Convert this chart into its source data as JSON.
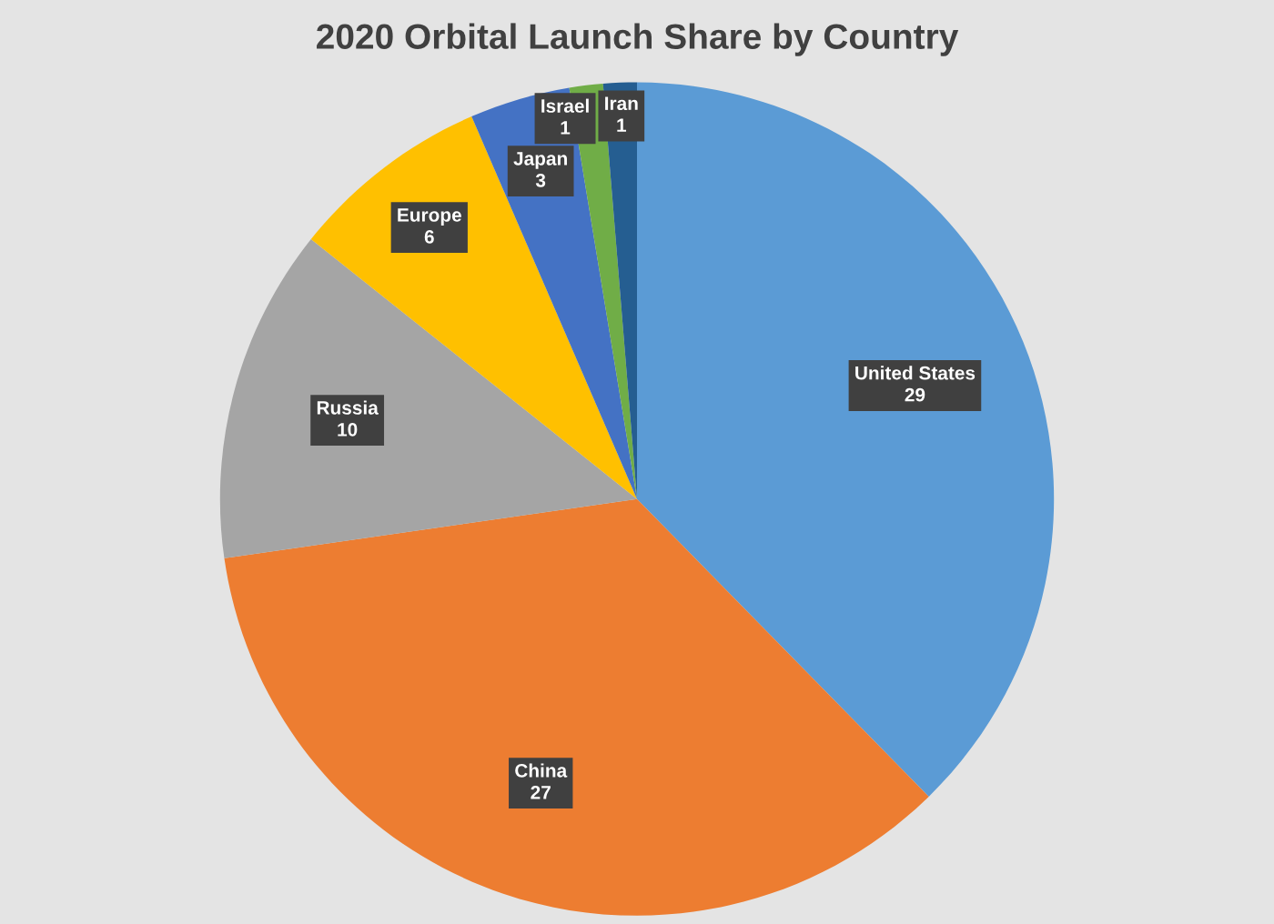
{
  "chart_data": {
    "type": "pie",
    "title": "2020 Orbital Launch Share by Country",
    "categories": [
      "United States",
      "China",
      "Russia",
      "Europe",
      "Japan",
      "Israel",
      "Iran"
    ],
    "values": [
      29,
      27,
      10,
      6,
      3,
      1,
      1
    ],
    "colors": [
      "#5b9bd5",
      "#ed7d31",
      "#a5a5a5",
      "#ffc000",
      "#4472c4",
      "#70ad47",
      "#255e91"
    ],
    "data_labels": true
  }
}
